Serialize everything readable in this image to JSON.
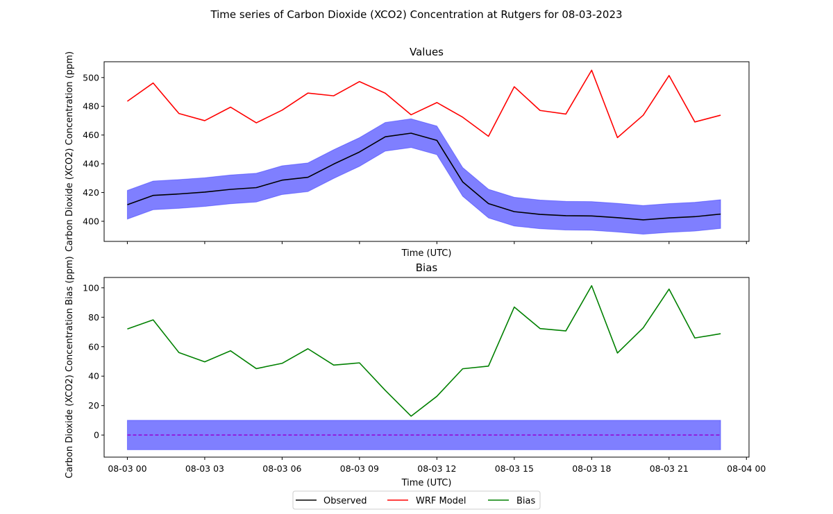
{
  "figure": {
    "suptitle": "Time series of Carbon Dioxide (XCO2) Concentration at Rutgers for 08-03-2023"
  },
  "colors": {
    "observed": "#000000",
    "model": "#ff0000",
    "bias": "#008000",
    "band": "#0000ff",
    "zero_line": "#9400d3"
  },
  "legend": {
    "placement": "lower-center",
    "items": [
      {
        "label": "Observed",
        "color": "#000000"
      },
      {
        "label": "WRF Model",
        "color": "#ff0000"
      },
      {
        "label": "Bias",
        "color": "#008000"
      }
    ]
  },
  "chart_data": [
    {
      "type": "line",
      "title": "Values",
      "xlabel": "Time (UTC)",
      "ylabel": "Carbon Dioxide (XCO2) Concentration (ppm)",
      "x_unit": "hour of 08-03-2023",
      "xlim": [
        -0.9,
        24.1
      ],
      "ylim": [
        386,
        511
      ],
      "yticks": [
        400,
        420,
        440,
        460,
        480,
        500
      ],
      "xticks_labels_shown": false,
      "x": [
        0,
        1,
        2,
        3,
        4,
        5,
        6,
        7,
        8,
        9,
        10,
        11,
        12,
        13,
        14,
        15,
        16,
        17,
        18,
        19,
        20,
        21,
        22,
        23
      ],
      "series": [
        {
          "name": "Observed",
          "color": "#000000",
          "values": [
            411.5,
            418.0,
            419.0,
            420.3,
            422.2,
            423.4,
            428.6,
            430.6,
            439.8,
            448.2,
            458.8,
            461.3,
            456.3,
            427.4,
            412.3,
            406.7,
            404.8,
            403.9,
            403.7,
            402.5,
            401.0,
            402.3,
            403.2,
            405.0
          ]
        },
        {
          "name": "WRF Model",
          "color": "#ff0000",
          "values": [
            483.5,
            496.2,
            475.0,
            470.0,
            479.4,
            468.5,
            477.3,
            489.2,
            487.3,
            497.2,
            489.1,
            474.1,
            482.6,
            472.4,
            459.1,
            493.6,
            477.1,
            474.6,
            505.1,
            458.2,
            473.8,
            501.4,
            469.1,
            473.8
          ]
        }
      ],
      "band": {
        "color": "#0000ff",
        "opacity": 0.5,
        "plus_minus": 10
      }
    },
    {
      "type": "line",
      "title": "Bias",
      "xlabel": "Time (UTC)",
      "ylabel": "Carbon Dioxide (XCO2) Concentration Bias (ppm)",
      "x_unit": "hour of 08-03-2023",
      "xlim": [
        -0.9,
        24.1
      ],
      "ylim": [
        -15,
        107
      ],
      "yticks": [
        0,
        20,
        40,
        60,
        80,
        100
      ],
      "xtick_values": [
        0,
        3,
        6,
        9,
        12,
        15,
        18,
        21,
        24
      ],
      "xtick_labels": [
        "08-03 00",
        "08-03 03",
        "08-03 06",
        "08-03 09",
        "08-03 12",
        "08-03 15",
        "08-03 18",
        "08-03 21",
        "08-04 00"
      ],
      "x": [
        0,
        1,
        2,
        3,
        4,
        5,
        6,
        7,
        8,
        9,
        10,
        11,
        12,
        13,
        14,
        15,
        16,
        17,
        18,
        19,
        20,
        21,
        22,
        23
      ],
      "series": [
        {
          "name": "Bias",
          "color": "#008000",
          "values": [
            72.0,
            78.2,
            56.0,
            49.7,
            57.2,
            45.1,
            48.7,
            58.6,
            47.5,
            49.0,
            30.3,
            12.8,
            26.3,
            45.0,
            46.8,
            86.9,
            72.3,
            70.7,
            101.4,
            55.7,
            72.8,
            99.1,
            65.9,
            68.8
          ]
        }
      ],
      "band": {
        "color": "#0000ff",
        "opacity": 0.5,
        "lower": -10,
        "upper": 10
      },
      "reference_line": {
        "value": 0,
        "style": "dashed",
        "color": "#9400d3"
      }
    }
  ]
}
